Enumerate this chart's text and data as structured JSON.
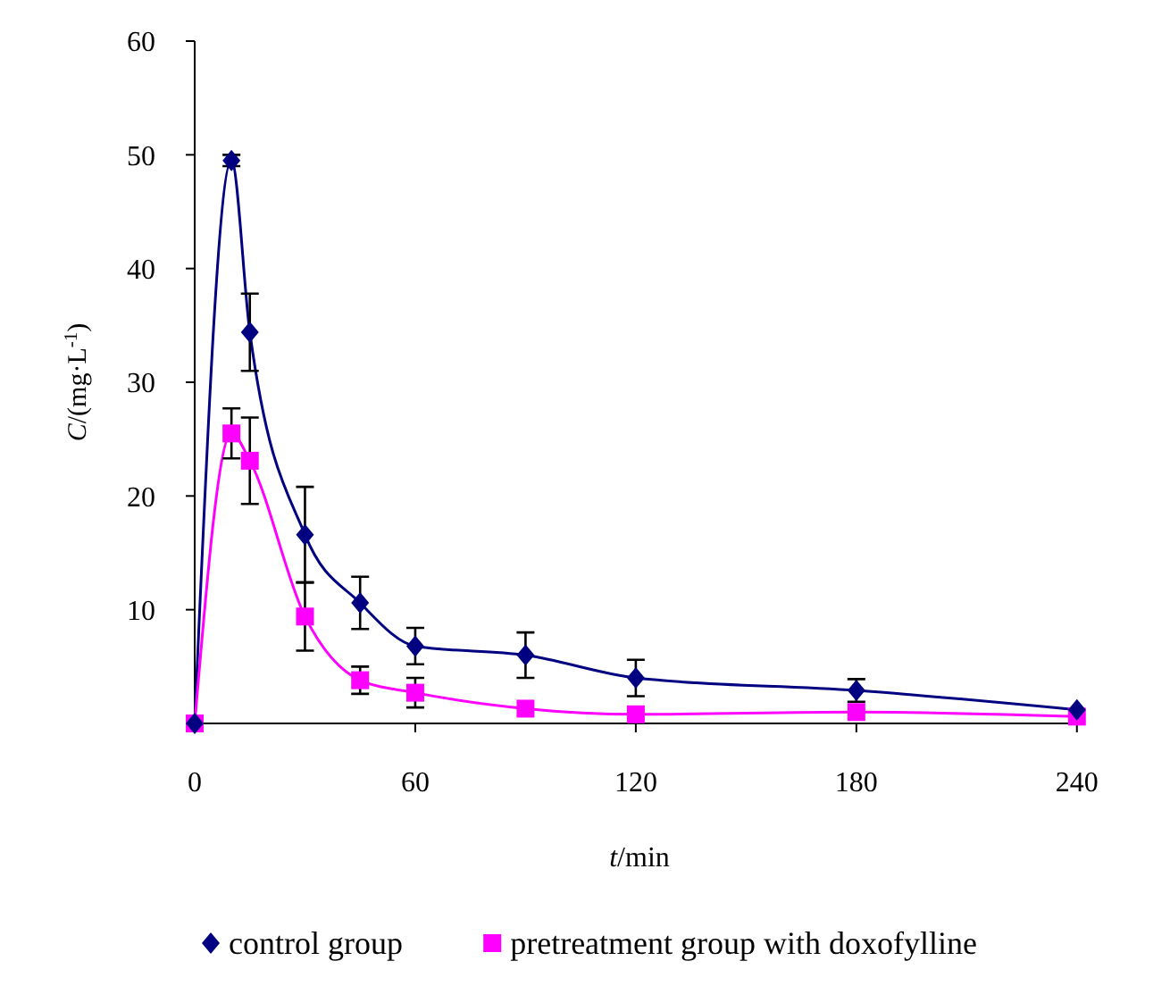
{
  "chart_data": {
    "type": "line",
    "xlabel": "t/min",
    "ylabel": "C/(mg·L$^{-1}$)",
    "x": [
      0,
      10,
      15,
      30,
      45,
      60,
      90,
      120,
      180,
      240
    ],
    "xlim": [
      0,
      242
    ],
    "xticks": [
      0,
      60,
      120,
      180,
      240
    ],
    "ylim": [
      0,
      60
    ],
    "yticks": [
      10,
      20,
      30,
      40,
      50,
      60
    ],
    "series": [
      {
        "name": "control group",
        "color": "#000080",
        "marker": "diamond",
        "values": [
          0,
          49.5,
          34.4,
          16.6,
          10.6,
          6.8,
          6.0,
          4.0,
          2.9,
          1.2
        ],
        "errors": [
          null,
          0.5,
          3.4,
          4.2,
          2.3,
          1.6,
          2.0,
          1.6,
          1.0,
          null
        ]
      },
      {
        "name": "pretreatment group with doxofylline",
        "color": "#ff00ff",
        "marker": "square",
        "values": [
          0,
          25.5,
          23.1,
          9.4,
          3.8,
          2.7,
          1.3,
          0.8,
          1.0,
          0.6
        ],
        "errors": [
          null,
          2.2,
          3.8,
          3.0,
          1.2,
          1.3,
          null,
          null,
          null,
          null
        ]
      }
    ],
    "legend": "bottom",
    "grid": false
  }
}
